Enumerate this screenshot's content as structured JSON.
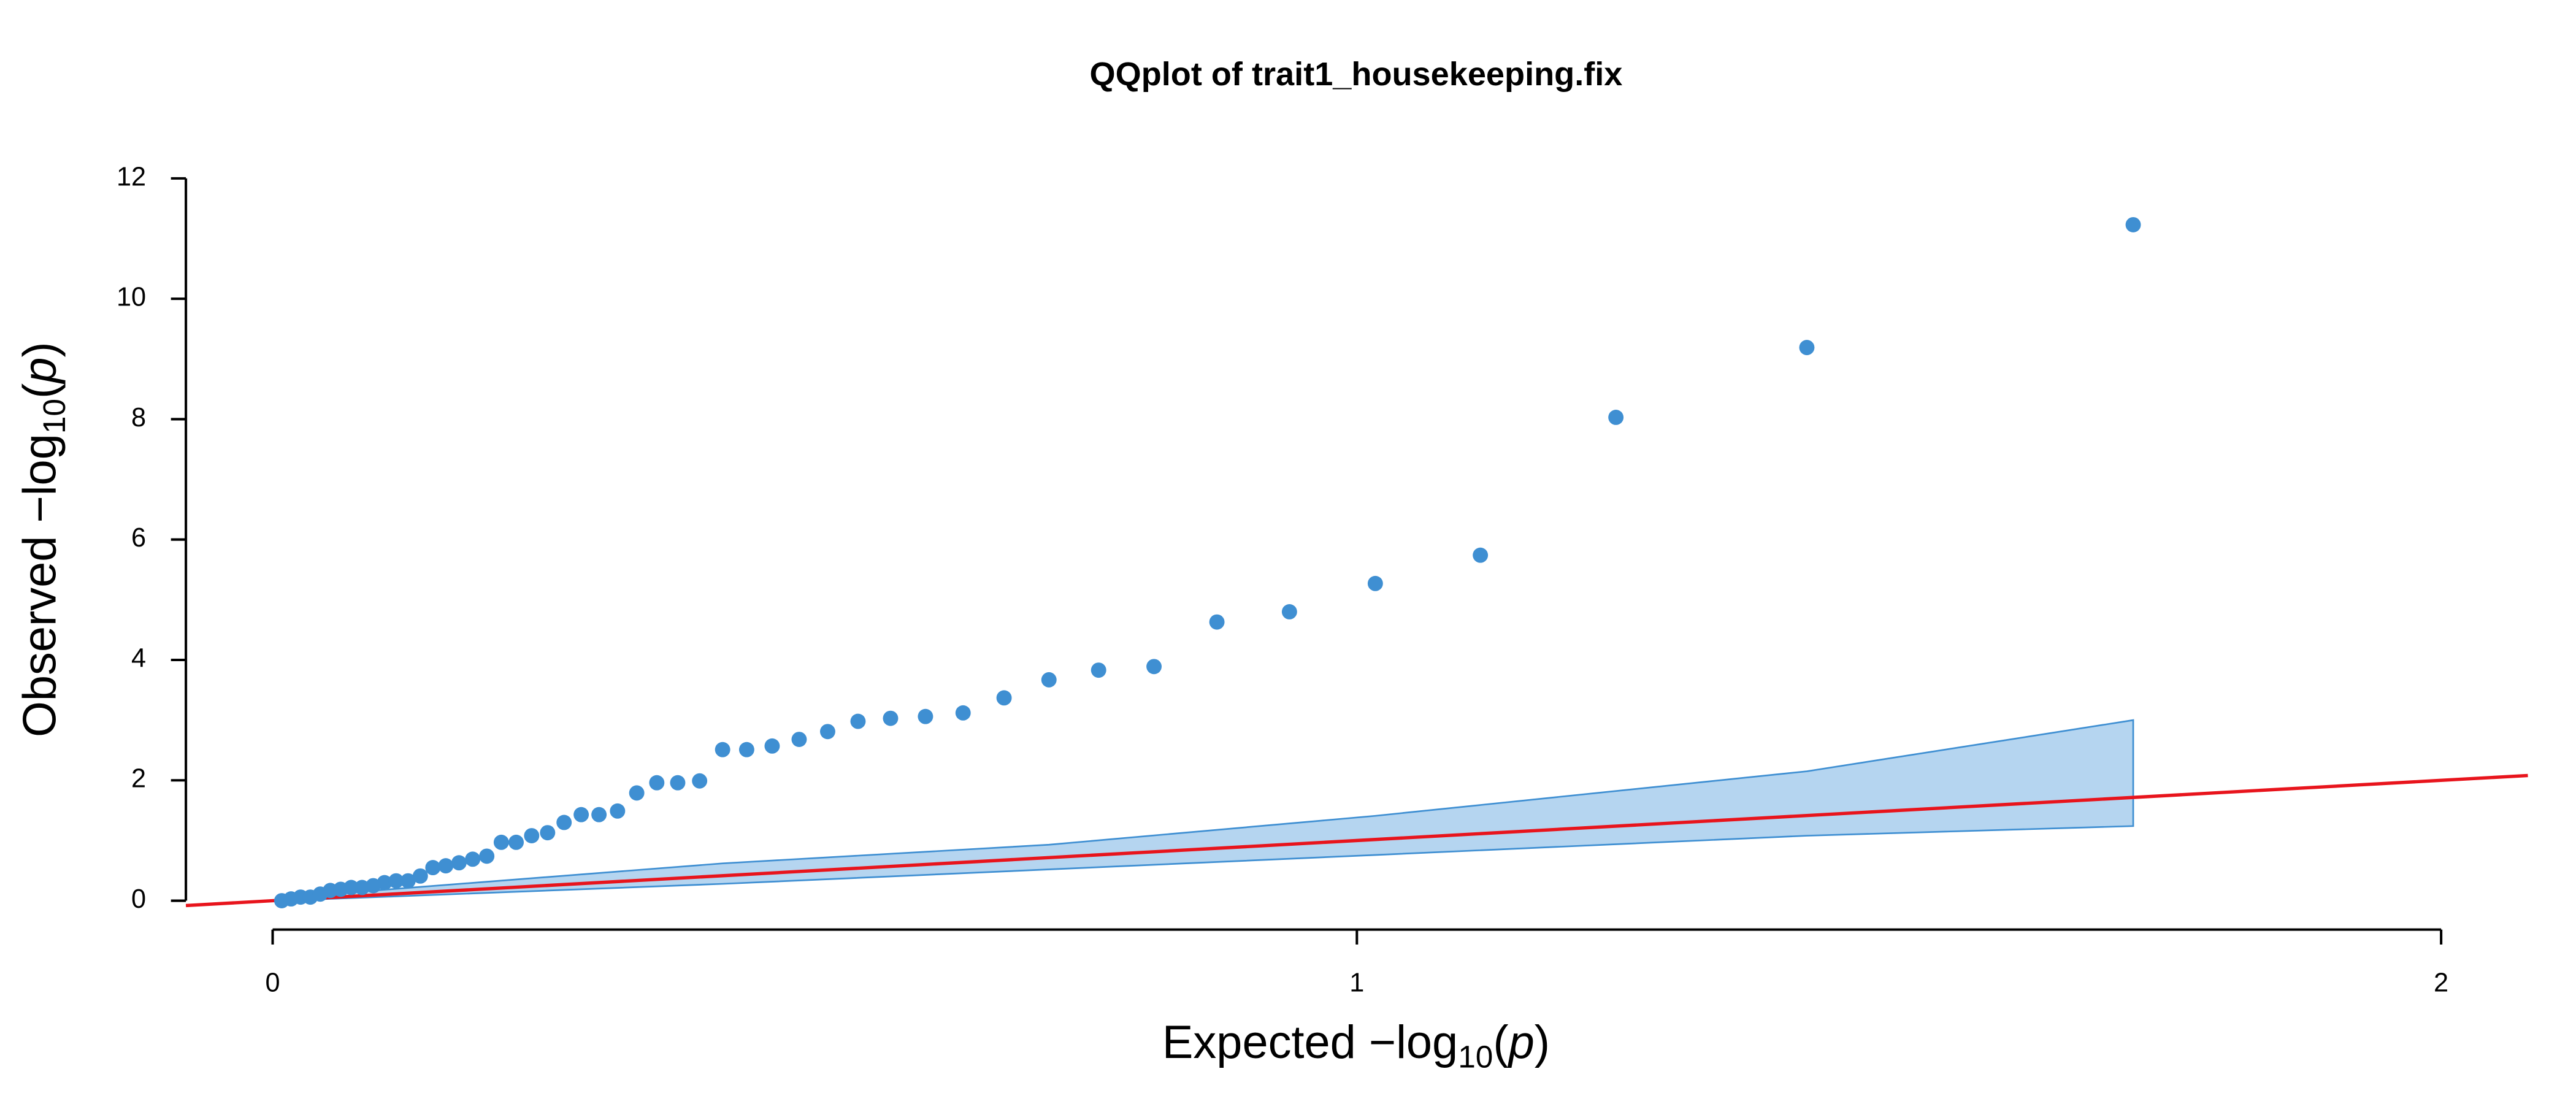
{
  "chart_data": {
    "type": "scatter",
    "title": "QQplot of trait1_housekeeping.fix",
    "xlabel": [
      "Expected  −log",
      "10",
      "(",
      "p",
      ")"
    ],
    "ylabel": [
      "Observed  −log",
      "10",
      "(",
      "p",
      ")"
    ],
    "xlim": [
      -0.08,
      2.08
    ],
    "ylim": [
      -0.48,
      12.48
    ],
    "xticks": [
      0,
      1,
      2
    ],
    "yticks": [
      0,
      2,
      4,
      6,
      8,
      10,
      12
    ],
    "series": [
      {
        "color": "#3f8fd2",
        "x": [
          0.0084,
          0.017,
          0.0258,
          0.0348,
          0.0439,
          0.0532,
          0.0628,
          0.0725,
          0.0825,
          0.0928,
          0.1032,
          0.1139,
          0.1249,
          0.1362,
          0.1478,
          0.1597,
          0.1719,
          0.1845,
          0.1975,
          0.2109,
          0.2246,
          0.2389,
          0.2536,
          0.2688,
          0.2846,
          0.301,
          0.3181,
          0.3358,
          0.3543,
          0.3736,
          0.3938,
          0.415,
          0.4372,
          0.4607,
          0.4856,
          0.5119,
          0.5399,
          0.5699,
          0.6021,
          0.6368,
          0.6746,
          0.716,
          0.7618,
          0.8129,
          0.8709,
          0.9378,
          1.017,
          1.1139,
          1.2389,
          1.415,
          1.716
        ],
        "values": [
          0,
          0.03,
          0.06,
          0.06,
          0.11,
          0.17,
          0.19,
          0.22,
          0.22,
          0.25,
          0.3,
          0.33,
          0.33,
          0.41,
          0.55,
          0.58,
          0.63,
          0.69,
          0.74,
          0.97,
          0.97,
          1.08,
          1.13,
          1.3,
          1.43,
          1.43,
          1.49,
          1.79,
          1.96,
          1.96,
          1.99,
          2.51,
          2.51,
          2.57,
          2.68,
          2.81,
          2.98,
          3.03,
          3.06,
          3.12,
          3.37,
          3.67,
          3.83,
          3.89,
          4.63,
          4.8,
          5.27,
          5.74,
          8.03,
          9.19,
          11.23
        ]
      }
    ],
    "band": {
      "color": "#b5d5f0",
      "edge_color": "#3f8fd2",
      "x": [
        0.0084,
        0.415,
        0.716,
        1.017,
        1.415,
        1.716
      ],
      "upper": [
        0.05,
        0.62,
        0.93,
        1.41,
        2.15,
        3.0
      ],
      "lower": [
        0.0,
        0.28,
        0.52,
        0.76,
        1.08,
        1.24
      ]
    },
    "reference_line": {
      "slope": 1,
      "intercept": 0,
      "color": "#e8141c"
    }
  }
}
